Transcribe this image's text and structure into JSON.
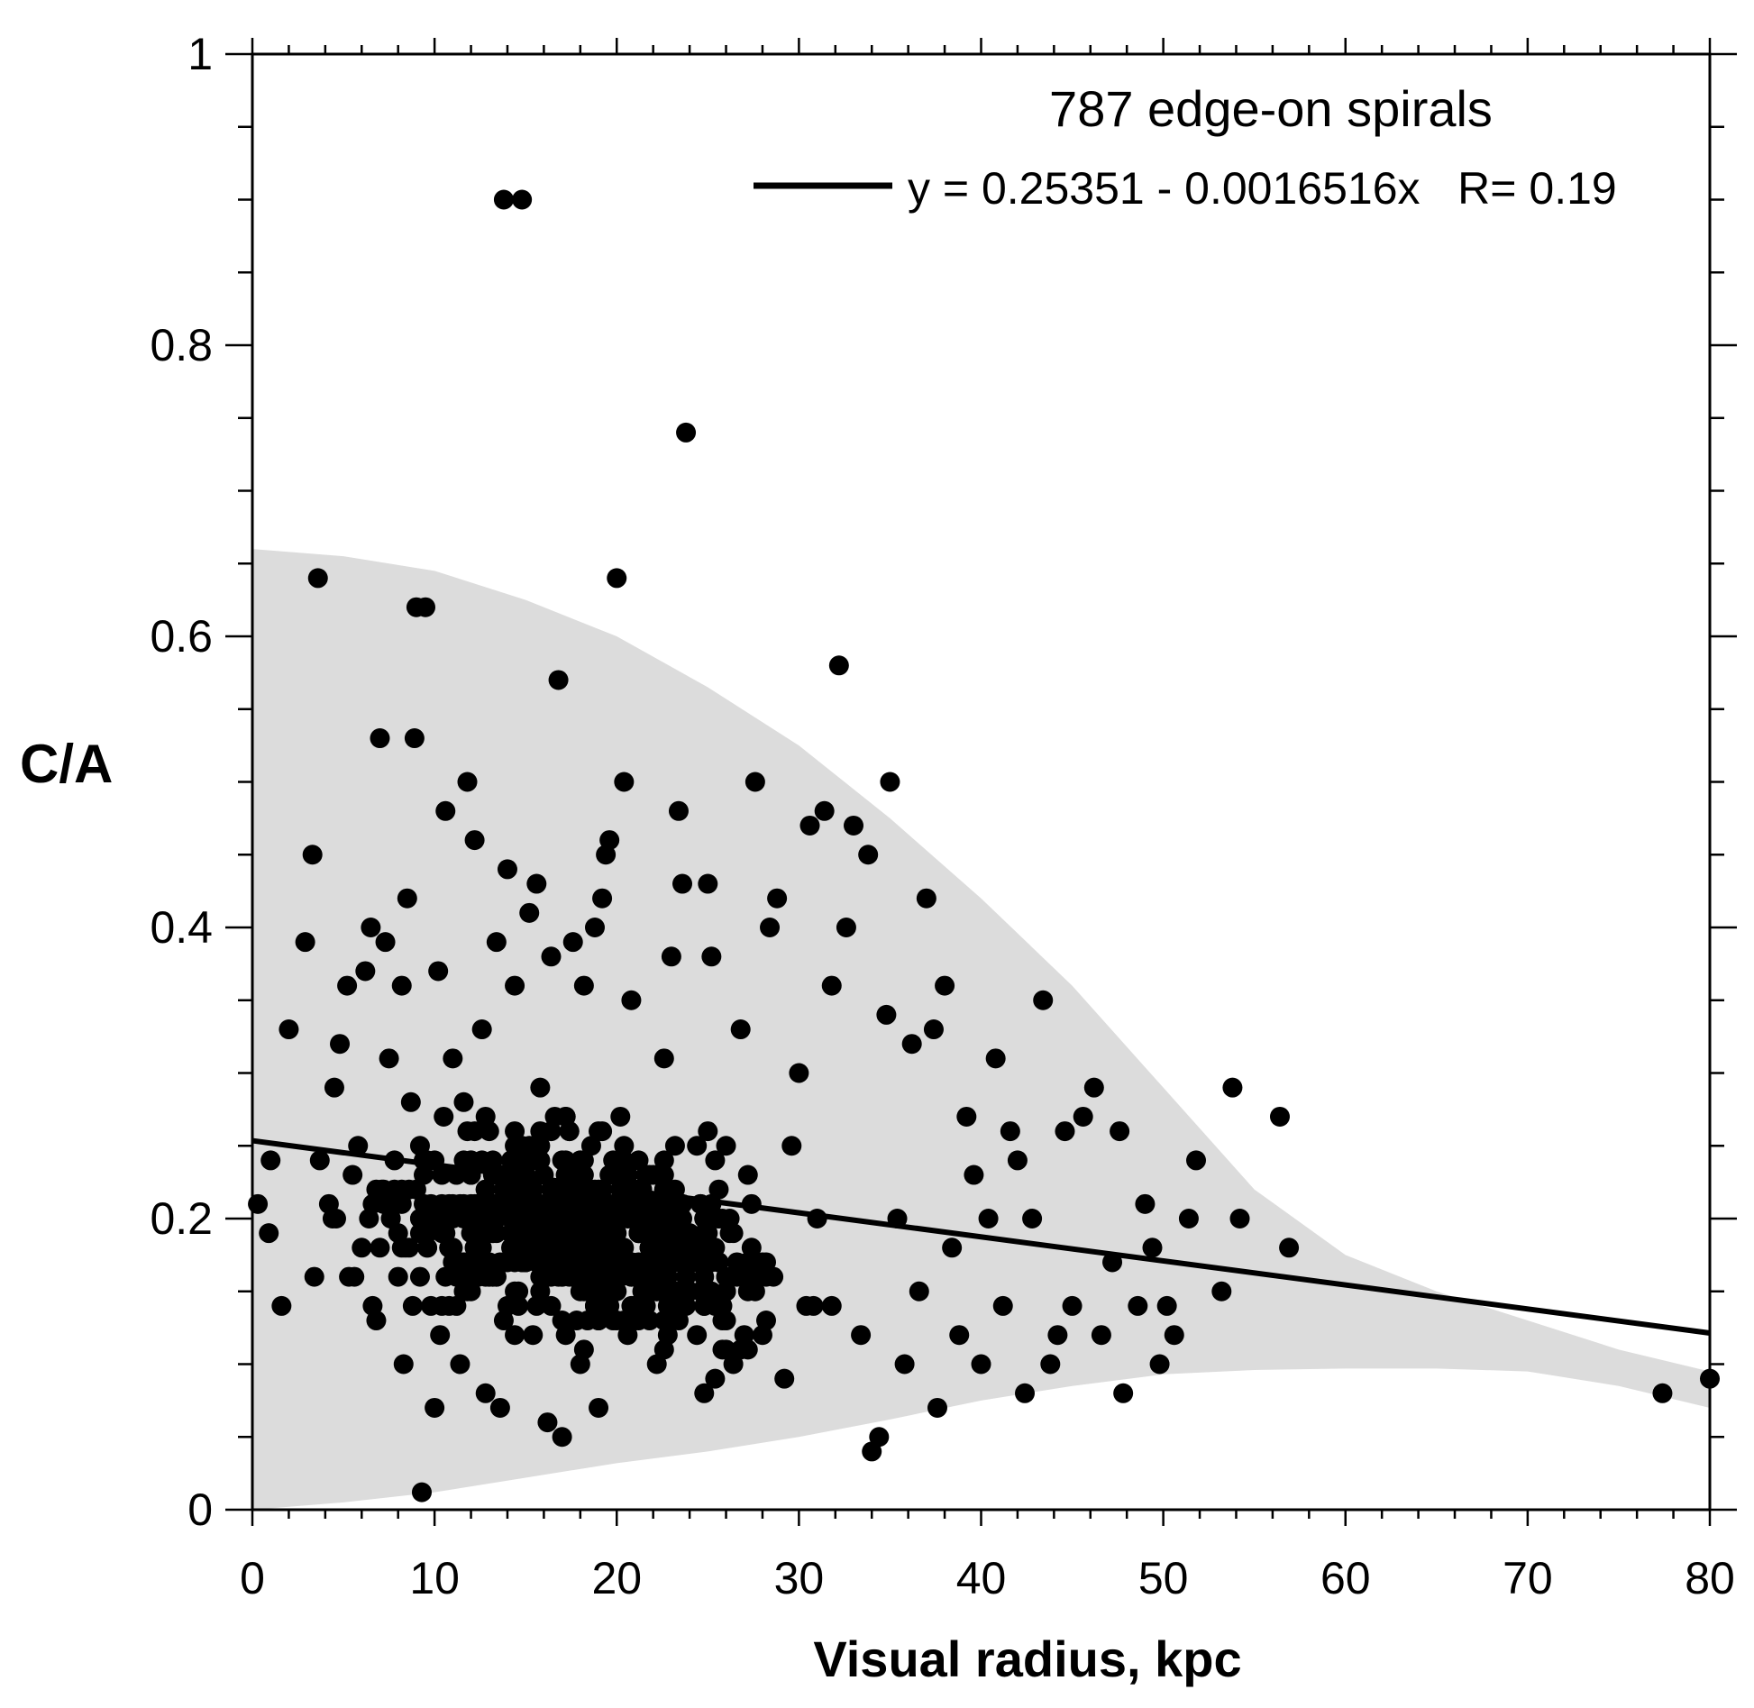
{
  "chart_data": {
    "type": "scatter",
    "title": "787 edge-on spirals",
    "xlabel": "Visual radius, kpc",
    "ylabel": "C/A",
    "xlim": [
      0,
      80
    ],
    "ylim": [
      0,
      1
    ],
    "x_ticks": [
      "0",
      "10",
      "20",
      "30",
      "40",
      "50",
      "60",
      "70",
      "80"
    ],
    "y_ticks": [
      "0",
      "0.2",
      "0.4",
      "0.6",
      "0.8",
      "1"
    ],
    "grid": false,
    "legend_placement": "top-right",
    "fit": {
      "label": "y = 0.25351 - 0.0016516x   R= 0.19",
      "intercept": 0.25351,
      "slope": -0.0016516,
      "x_range": [
        0,
        80
      ]
    },
    "band": {
      "description_color": "#dcdcdc",
      "x": [
        0,
        5,
        10,
        15,
        20,
        25,
        30,
        35,
        40,
        45,
        50,
        55,
        60,
        65,
        70,
        75,
        80
      ],
      "upper": [
        0.66,
        0.655,
        0.645,
        0.625,
        0.6,
        0.565,
        0.525,
        0.475,
        0.42,
        0.36,
        0.29,
        0.22,
        0.175,
        0.15,
        0.13,
        0.11,
        0.095
      ],
      "lower": [
        0.0,
        0.005,
        0.012,
        0.022,
        0.032,
        0.04,
        0.05,
        0.062,
        0.075,
        0.085,
        0.093,
        0.096,
        0.097,
        0.097,
        0.095,
        0.085,
        0.07
      ]
    },
    "point_color": "#000000",
    "band_color": "#dcdcdc",
    "points": [
      [
        0.3,
        0.21
      ],
      [
        0.9,
        0.19
      ],
      [
        1.0,
        0.24
      ],
      [
        1.6,
        0.14
      ],
      [
        2.0,
        0.33
      ],
      [
        2.9,
        0.39
      ],
      [
        3.3,
        0.45
      ],
      [
        3.4,
        0.16
      ],
      [
        3.6,
        0.64
      ],
      [
        3.7,
        0.24
      ],
      [
        4.2,
        0.21
      ],
      [
        4.5,
        0.29
      ],
      [
        4.8,
        0.32
      ],
      [
        5.2,
        0.36
      ],
      [
        5.3,
        0.16
      ],
      [
        5.5,
        0.23
      ],
      [
        5.8,
        0.25
      ],
      [
        6.0,
        0.18
      ],
      [
        6.2,
        0.37
      ],
      [
        6.4,
        0.2
      ],
      [
        6.5,
        0.4
      ],
      [
        6.6,
        0.14
      ],
      [
        6.8,
        0.13
      ],
      [
        7.0,
        0.53
      ],
      [
        7.1,
        0.22
      ],
      [
        7.3,
        0.39
      ],
      [
        7.5,
        0.31
      ],
      [
        7.6,
        0.2
      ],
      [
        7.8,
        0.24
      ],
      [
        8.0,
        0.16
      ],
      [
        8.2,
        0.36
      ],
      [
        8.3,
        0.1
      ],
      [
        8.5,
        0.42
      ],
      [
        8.7,
        0.28
      ],
      [
        8.9,
        0.53
      ],
      [
        9.0,
        0.62
      ],
      [
        9.2,
        0.2
      ],
      [
        9.3,
        0.012
      ],
      [
        9.5,
        0.62
      ],
      [
        9.6,
        0.24
      ],
      [
        9.8,
        0.14
      ],
      [
        10.0,
        0.07
      ],
      [
        10.2,
        0.37
      ],
      [
        10.3,
        0.12
      ],
      [
        10.5,
        0.27
      ],
      [
        10.6,
        0.48
      ],
      [
        10.8,
        0.18
      ],
      [
        11.0,
        0.31
      ],
      [
        11.2,
        0.23
      ],
      [
        11.4,
        0.1
      ],
      [
        11.6,
        0.28
      ],
      [
        11.8,
        0.5
      ],
      [
        12.0,
        0.15
      ],
      [
        12.2,
        0.46
      ],
      [
        12.4,
        0.21
      ],
      [
        12.6,
        0.33
      ],
      [
        12.8,
        0.08
      ],
      [
        13.0,
        0.26
      ],
      [
        13.2,
        0.19
      ],
      [
        13.4,
        0.39
      ],
      [
        13.6,
        0.07
      ],
      [
        13.8,
        0.9
      ],
      [
        14.0,
        0.44
      ],
      [
        14.2,
        0.24
      ],
      [
        14.4,
        0.36
      ],
      [
        14.6,
        0.15
      ],
      [
        14.8,
        0.9
      ],
      [
        15.0,
        0.23
      ],
      [
        15.2,
        0.41
      ],
      [
        15.4,
        0.12
      ],
      [
        15.6,
        0.43
      ],
      [
        15.8,
        0.29
      ],
      [
        16.0,
        0.18
      ],
      [
        16.2,
        0.06
      ],
      [
        16.4,
        0.38
      ],
      [
        16.6,
        0.21
      ],
      [
        16.8,
        0.57
      ],
      [
        17.0,
        0.05
      ],
      [
        17.2,
        0.27
      ],
      [
        17.4,
        0.16
      ],
      [
        17.6,
        0.39
      ],
      [
        17.8,
        0.22
      ],
      [
        18.0,
        0.1
      ],
      [
        18.2,
        0.36
      ],
      [
        18.4,
        0.19
      ],
      [
        18.6,
        0.25
      ],
      [
        18.8,
        0.4
      ],
      [
        19.0,
        0.07
      ],
      [
        19.2,
        0.42
      ],
      [
        19.4,
        0.45
      ],
      [
        19.6,
        0.46
      ],
      [
        19.8,
        0.17
      ],
      [
        20.0,
        0.64
      ],
      [
        20.2,
        0.27
      ],
      [
        20.4,
        0.5
      ],
      [
        20.6,
        0.12
      ],
      [
        20.8,
        0.35
      ],
      [
        21.0,
        0.2
      ],
      [
        21.4,
        0.15
      ],
      [
        21.8,
        0.23
      ],
      [
        22.2,
        0.1
      ],
      [
        22.6,
        0.31
      ],
      [
        23.0,
        0.38
      ],
      [
        23.4,
        0.48
      ],
      [
        23.6,
        0.43
      ],
      [
        23.8,
        0.74
      ],
      [
        24.0,
        0.18
      ],
      [
        24.4,
        0.25
      ],
      [
        24.8,
        0.08
      ],
      [
        25.0,
        0.43
      ],
      [
        25.2,
        0.38
      ],
      [
        25.6,
        0.2
      ],
      [
        26.0,
        0.13
      ],
      [
        26.4,
        0.1
      ],
      [
        26.8,
        0.33
      ],
      [
        27.2,
        0.23
      ],
      [
        27.6,
        0.5
      ],
      [
        28.0,
        0.17
      ],
      [
        28.4,
        0.4
      ],
      [
        28.8,
        0.42
      ],
      [
        29.2,
        0.09
      ],
      [
        29.6,
        0.25
      ],
      [
        30.0,
        0.3
      ],
      [
        30.4,
        0.14
      ],
      [
        30.6,
        0.47
      ],
      [
        31.0,
        0.2
      ],
      [
        31.4,
        0.48
      ],
      [
        31.8,
        0.36
      ],
      [
        32.2,
        0.58
      ],
      [
        32.6,
        0.4
      ],
      [
        33.0,
        0.47
      ],
      [
        33.4,
        0.12
      ],
      [
        33.8,
        0.45
      ],
      [
        34.0,
        0.04
      ],
      [
        34.4,
        0.05
      ],
      [
        34.8,
        0.34
      ],
      [
        35.0,
        0.5
      ],
      [
        35.4,
        0.2
      ],
      [
        35.8,
        0.1
      ],
      [
        36.2,
        0.32
      ],
      [
        36.6,
        0.15
      ],
      [
        37.0,
        0.42
      ],
      [
        37.4,
        0.33
      ],
      [
        37.6,
        0.07
      ],
      [
        38.0,
        0.36
      ],
      [
        38.4,
        0.18
      ],
      [
        38.8,
        0.12
      ],
      [
        39.2,
        0.27
      ],
      [
        39.6,
        0.23
      ],
      [
        40.0,
        0.1
      ],
      [
        40.4,
        0.2
      ],
      [
        40.8,
        0.31
      ],
      [
        41.2,
        0.14
      ],
      [
        41.6,
        0.26
      ],
      [
        42.0,
        0.24
      ],
      [
        42.4,
        0.08
      ],
      [
        42.8,
        0.2
      ],
      [
        43.4,
        0.35
      ],
      [
        43.8,
        0.1
      ],
      [
        44.2,
        0.12
      ],
      [
        44.6,
        0.26
      ],
      [
        45.0,
        0.14
      ],
      [
        45.6,
        0.27
      ],
      [
        46.2,
        0.29
      ],
      [
        46.6,
        0.12
      ],
      [
        47.2,
        0.17
      ],
      [
        47.6,
        0.26
      ],
      [
        47.8,
        0.08
      ],
      [
        48.6,
        0.14
      ],
      [
        49.0,
        0.21
      ],
      [
        49.4,
        0.18
      ],
      [
        49.8,
        0.1
      ],
      [
        50.2,
        0.14
      ],
      [
        50.6,
        0.12
      ],
      [
        51.4,
        0.2
      ],
      [
        51.8,
        0.24
      ],
      [
        53.2,
        0.15
      ],
      [
        53.8,
        0.29
      ],
      [
        54.2,
        0.2
      ],
      [
        56.4,
        0.27
      ],
      [
        56.9,
        0.18
      ],
      [
        77.4,
        0.08
      ],
      [
        80.0,
        0.09
      ]
    ],
    "cluster": {
      "note_count": 787,
      "seed_region_x": [
        4,
        34
      ],
      "seed_region_y": [
        0.08,
        0.34
      ]
    }
  }
}
